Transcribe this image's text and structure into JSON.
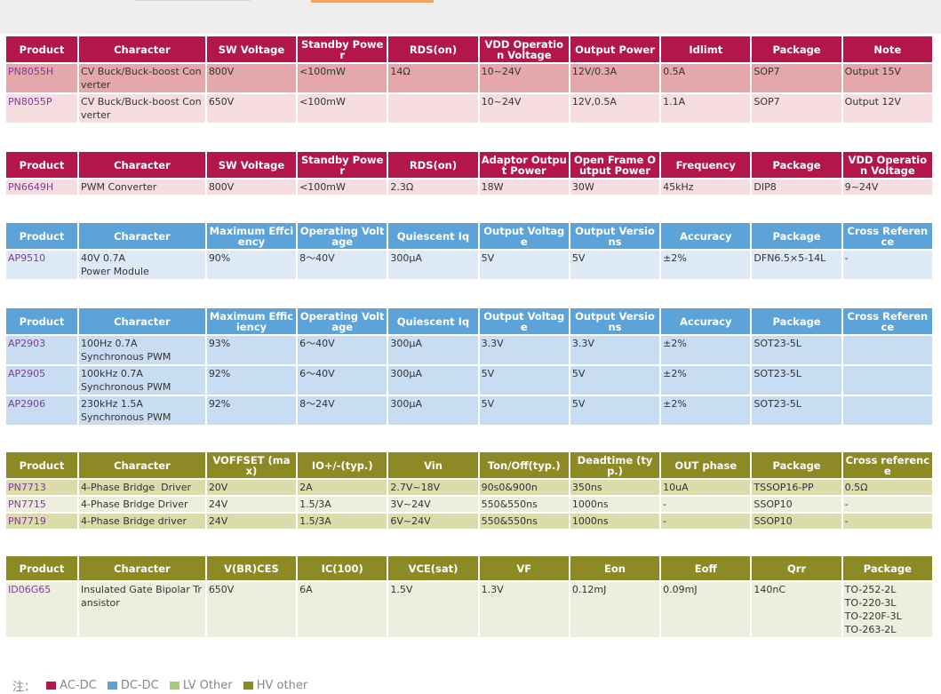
{
  "legend": {
    "note": "注：",
    "items": [
      {
        "label": "AC-DC",
        "color": "#b3164a"
      },
      {
        "label": "DC-DC",
        "color": "#5ba3d9"
      },
      {
        "label": "LV Other",
        "color": "#a9cc7a"
      },
      {
        "label": "HV other",
        "color": "#8d8a25"
      }
    ]
  },
  "tables": [
    {
      "headers": [
        "Product",
        "Character",
        "SW Voltage",
        "Standby Power",
        "RDS(on)",
        "VDD Operation Voltage",
        "Output Power",
        "Idlimt",
        "Package",
        "Note"
      ],
      "rows": [
        [
          "PN8055H",
          "CV Buck/Buck-boost Converter",
          "800V",
          "<100mW",
          "14Ω",
          "10~24V",
          "12V/0.3A",
          "0.5A",
          "SOP7",
          "Output 15V"
        ],
        [
          "PN8055P",
          "CV Buck/Buck-boost Converter",
          "650V",
          "<100mW",
          "",
          "10~24V",
          "12V,0.5A",
          "1.1A",
          "SOP7",
          "Output 12V"
        ]
      ]
    },
    {
      "headers": [
        "Product",
        "Character",
        "SW Voltage",
        "Standby Power",
        "RDS(on)",
        "Adaptor Output Power",
        "Open Frame Output Power",
        "Frequency",
        "Package",
        "VDD Operation Voltage"
      ],
      "rows": [
        [
          "PN6649H",
          "PWM Converter",
          "800V",
          "<100mW",
          "2.3Ω",
          "18W",
          "30W",
          "45kHz",
          "DIP8",
          "9~24V"
        ]
      ]
    },
    {
      "headers": [
        "Product",
        "Character",
        "Maximum Effciency",
        "Operating Voltage",
        "Quiescent Iq",
        "Output Voltage",
        "Output Versions",
        "Accuracy",
        "Package",
        "Cross Reference"
      ],
      "rows": [
        [
          "AP9510",
          "40V 0.7A\nPower Module",
          "90%",
          "8～40V",
          "300μA",
          "5V",
          "5V",
          "±2%",
          "DFN6.5×5-14L",
          "-"
        ]
      ]
    },
    {
      "headers": [
        "Product",
        "Character",
        "Maximum Efficiency",
        "Operating Voltage",
        "Quiescent Iq",
        "Output Voltage",
        "Output Versions",
        "Accuracy",
        "Package",
        "Cross Reference"
      ],
      "rows": [
        [
          "AP2903",
          "100Hz 0.7A\nSynchronous PWM",
          "93%",
          "6～40V",
          "300μA",
          "3.3V",
          "3.3V",
          "±2%",
          "SOT23-5L",
          ""
        ],
        [
          "AP2905",
          "100kHz 0.7A\nSynchronous PWM",
          "92%",
          "6～40V",
          "300μA",
          "5V",
          "5V",
          "±2%",
          "SOT23-5L",
          ""
        ],
        [
          "AP2906",
          "230kHz 1.5A\nSynchronous PWM",
          "92%",
          "8～24V",
          "300μA",
          "5V",
          "5V",
          "±2%",
          "SOT23-5L",
          ""
        ]
      ]
    },
    {
      "headers": [
        "Product",
        "Character",
        "VOFFSET (max)",
        "IO+/-(typ.)",
        "Vin",
        "Ton/Off(typ.)",
        "Deadtime (typ.)",
        "OUT phase",
        "Package",
        "Cross reference"
      ],
      "rows": [
        [
          "PN7713",
          "4-Phase Bridge  Driver",
          "20V",
          "2A",
          "2.7V~18V",
          "90s0&900n",
          "350ns",
          "10uA",
          "TSSOP16-PP",
          "0.5Ω"
        ],
        [
          "PN7715",
          "4-Phase Bridge Driver",
          "24V",
          "1.5/3A",
          "3V~24V",
          "550&550ns",
          "1000ns",
          "-",
          "SSOP10",
          "-"
        ],
        [
          "PN7719",
          "4-Phase Bridge driver",
          "24V",
          "1.5/3A",
          "6V~24V",
          "550&550ns",
          "1000ns",
          "-",
          "SSOP10",
          "-"
        ]
      ]
    },
    {
      "headers": [
        "Product",
        "Character",
        "V(BR)CES",
        "IC(100)",
        "VCE(sat)",
        "VF",
        "Eon",
        "Eoff",
        "Qrr",
        "Package"
      ],
      "rows": [
        [
          "ID06G65",
          "Insulated Gate Bipolar Transistor",
          "650V",
          "6A",
          "1.5V",
          "1.3V",
          "0.12mJ",
          "0.09mJ",
          "140nC",
          "TO-252-2L\nTO-220-3L\nTO-220F-3L\nTO-263-2L"
        ]
      ]
    }
  ]
}
